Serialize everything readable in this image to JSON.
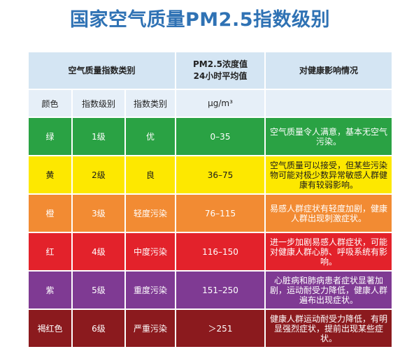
{
  "title": "国家空气质量PM2.5指数级别",
  "headers": {
    "category": "空气质量指数类别",
    "pm_line1": "PM2.5浓度值",
    "pm_line2": "24小时平均值",
    "effect": "对健康影响情况"
  },
  "subheaders": {
    "color": "颜色",
    "level": "指数级别",
    "type": "指数类别",
    "unit": "μg/m³"
  },
  "rows": [
    {
      "color": "绿",
      "level": "1级",
      "type": "优",
      "range": "0–35",
      "effect": "空气质量令人满意，基本无空气污染。",
      "bg": "#2aa244",
      "text_color": "#ffffff"
    },
    {
      "color": "黄",
      "level": "2级",
      "type": "良",
      "range": "36–75",
      "effect": "空气质量可以接受，但某些污染物可能对极少数异常敏感人群健康有较弱影响。",
      "bg": "#fde800",
      "text_color": "#1b1b1b"
    },
    {
      "color": "橙",
      "level": "3级",
      "type": "轻度污染",
      "range": "76–115",
      "effect": "易感人群症状有轻度加剧，健康人群出现刺激症状。",
      "bg": "#f28b33",
      "text_color": "#ffffff"
    },
    {
      "color": "红",
      "level": "4级",
      "type": "中度污染",
      "range": "116–150",
      "effect": "进一步加剧易感人群症状，可能对健康人群心肺、呼吸系统有影响。",
      "bg": "#e3222b",
      "text_color": "#ffffff"
    },
    {
      "color": "紫",
      "level": "5级",
      "type": "重度污染",
      "range": "151–250",
      "effect": "心脏病和肺病患者症状显著加剧，运动耐受力降低，健康人群遍布出现症状。",
      "bg": "#7f3a93",
      "text_color": "#ffffff"
    },
    {
      "color": "褐红色",
      "level": "6级",
      "type": "严重污染",
      "range": "＞251",
      "effect": "健康人群运动耐受力降低，有明显强烈症状，提前出现某些症状。",
      "bg": "#8b1a1e",
      "text_color": "#ffffff"
    }
  ]
}
